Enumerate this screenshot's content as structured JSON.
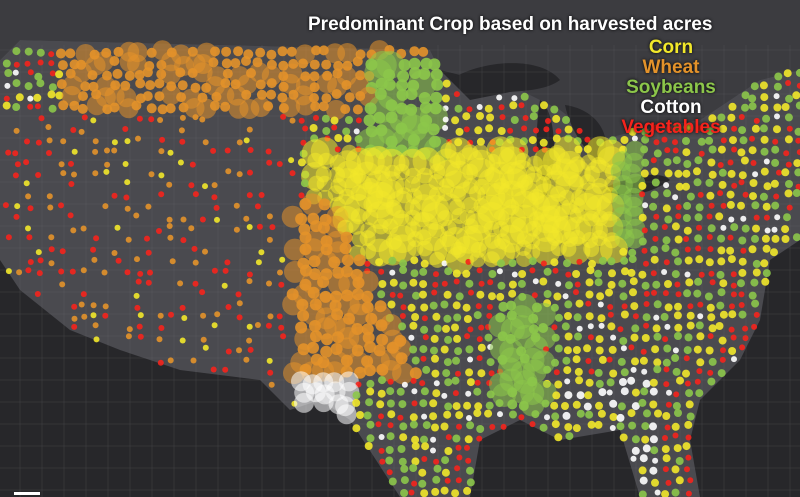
{
  "title": "Predominant Crop based on harvested acres",
  "legend": [
    {
      "label": "Corn",
      "color": "#f2e82a"
    },
    {
      "label": "Wheat",
      "color": "#e3922a"
    },
    {
      "label": "Soybeans",
      "color": "#8cc64a"
    },
    {
      "label": "Cotton",
      "color": "#ffffff"
    },
    {
      "label": "Vegetables",
      "color": "#f5231c"
    }
  ],
  "colors": {
    "land": "#4a4a4f",
    "water": "#27272a",
    "border": "#6a6a70"
  }
}
